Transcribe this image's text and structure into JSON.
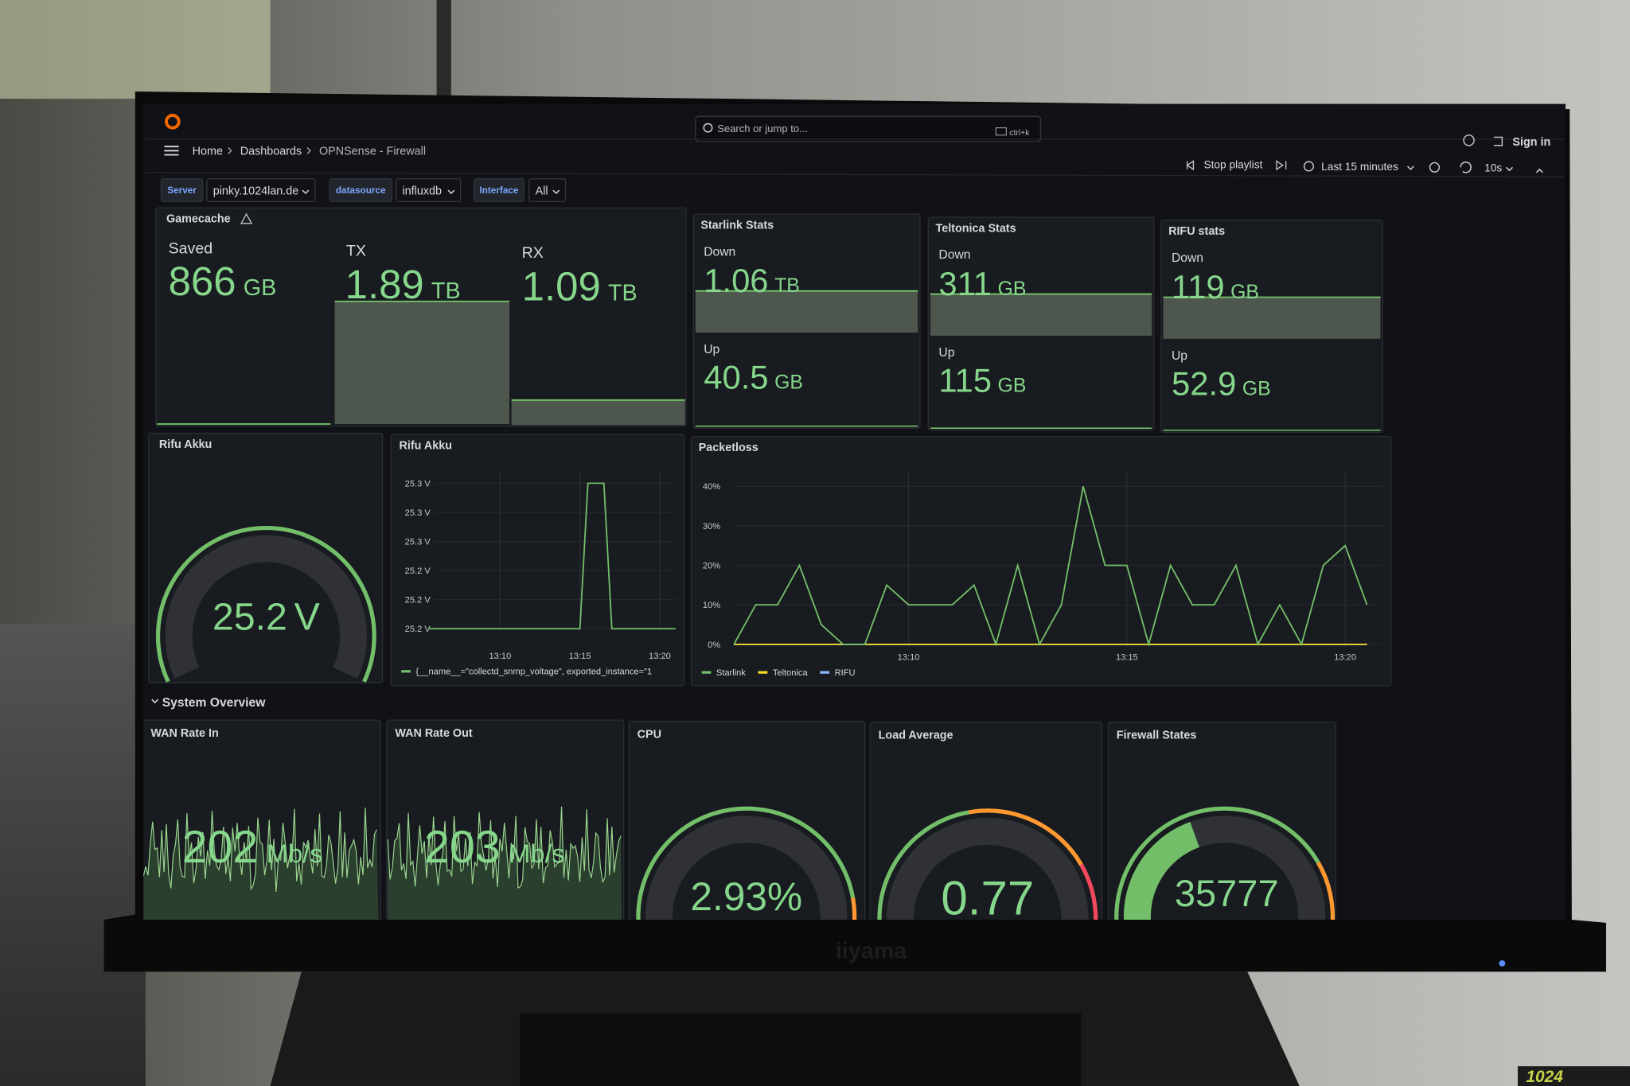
{
  "header": {
    "search_placeholder": "Search or jump to...",
    "search_shortcut": "ctrl+k",
    "breadcrumb": [
      "Home",
      "Dashboards",
      "OPNSense - Firewall"
    ],
    "sign_in": "Sign in",
    "stop_playlist": "Stop playlist",
    "time_range": "Last 15 minutes",
    "refresh_interval": "10s"
  },
  "variables": [
    {
      "label": "Server",
      "value": "pinky.1024lan.de"
    },
    {
      "label": "datasource",
      "value": "influxdb"
    },
    {
      "label": "Interface",
      "value": "All"
    }
  ],
  "gamecache": {
    "title": "Gamecache",
    "stats": [
      {
        "label": "Saved",
        "value": 866,
        "unit": "GB"
      },
      {
        "label": "TX",
        "value": 1.89,
        "unit": "TB"
      },
      {
        "label": "RX",
        "value": 1.09,
        "unit": "TB"
      }
    ]
  },
  "links": [
    {
      "title": "Starlink Stats",
      "down_label": "Down",
      "down": 1.06,
      "down_unit": "TB",
      "up_label": "Up",
      "up": 40.5,
      "up_unit": "GB"
    },
    {
      "title": "Teltonica Stats",
      "down_label": "Down",
      "down": 311,
      "down_unit": "GB",
      "up_label": "Up",
      "up": 115,
      "up_unit": "GB"
    },
    {
      "title": "RIFU stats",
      "down_label": "Down",
      "down": 119,
      "down_unit": "GB",
      "up_label": "Up",
      "up": 52.9,
      "up_unit": "GB"
    }
  ],
  "rifu_gauge": {
    "title": "Rifu Akku",
    "value": 25.2,
    "unit": "V"
  },
  "chart_data": [
    {
      "type": "line",
      "title": "Rifu Akku",
      "categories": [
        null,
        null,
        null,
        null,
        null,
        null,
        null,
        null,
        null,
        "13:10",
        null,
        null,
        null,
        null,
        null,
        null,
        null,
        null,
        null,
        "13:15",
        null,
        null,
        null,
        null,
        null,
        null,
        null,
        null,
        null,
        "13:20",
        null,
        null
      ],
      "series": [
        {
          "name": "{__name__=\"collectd_snmp_voltage\", exported_instance=\"1",
          "color": "#73bf69",
          "values": [
            25.2,
            25.2,
            25.2,
            25.2,
            25.2,
            25.2,
            25.2,
            25.2,
            25.2,
            25.2,
            25.2,
            25.2,
            25.2,
            25.2,
            25.2,
            25.2,
            25.2,
            25.2,
            25.2,
            25.2,
            25.3,
            25.3,
            25.3,
            25.2,
            25.2,
            25.2,
            25.2,
            25.2,
            25.2,
            25.2,
            25.2,
            25.2
          ]
        }
      ],
      "ylim": [
        25.2,
        25.3
      ],
      "yticks": [
        {
          "value": 25.2,
          "label": "25.2 V"
        },
        {
          "value": 25.22,
          "label": "25.2 V"
        },
        {
          "value": 25.24,
          "label": "25.2 V"
        },
        {
          "value": 25.26,
          "label": "25.3 V"
        },
        {
          "value": 25.28,
          "label": "25.3 V"
        },
        {
          "value": 25.3,
          "label": "25.3 V"
        }
      ],
      "grid": true,
      "legend": "bottom-left"
    },
    {
      "type": "line",
      "title": "Packetloss",
      "categories": [
        null,
        null,
        null,
        null,
        null,
        null,
        null,
        null,
        "13:10",
        null,
        null,
        null,
        null,
        null,
        null,
        null,
        null,
        null,
        "13:15",
        null,
        null,
        null,
        null,
        null,
        null,
        null,
        null,
        null,
        "13:20",
        null
      ],
      "series": [
        {
          "name": "Starlink",
          "color": "#73bf69",
          "values": [
            0,
            10,
            10,
            20,
            5,
            0,
            0,
            15,
            10,
            10,
            10,
            15,
            0,
            20,
            0,
            10,
            40,
            20,
            20,
            0,
            20,
            10,
            10,
            20,
            0,
            10,
            0,
            20,
            25,
            10
          ]
        },
        {
          "name": "Teltonica",
          "color": "#fade2a",
          "values": [
            0,
            0,
            0,
            0,
            0,
            0,
            0,
            0,
            0,
            0,
            0,
            0,
            0,
            0,
            0,
            0,
            0,
            0,
            0,
            0,
            0,
            0,
            0,
            0,
            0,
            0,
            0,
            0,
            0,
            0
          ]
        },
        {
          "name": "RIFU",
          "color": "#8ab8ff",
          "values": [
            0,
            0,
            0,
            0,
            0,
            0,
            0,
            0,
            0,
            0,
            0,
            0,
            0,
            0,
            0,
            0,
            0,
            0,
            0,
            0,
            0,
            0,
            0,
            0,
            0,
            0,
            0,
            0,
            0,
            0
          ]
        }
      ],
      "ylim": [
        0,
        40
      ],
      "yticks": [
        {
          "value": 0,
          "label": "0%"
        },
        {
          "value": 10,
          "label": "10%"
        },
        {
          "value": 20,
          "label": "20%"
        },
        {
          "value": 30,
          "label": "30%"
        },
        {
          "value": 40,
          "label": "40%"
        }
      ],
      "grid": true,
      "legend": "bottom-left"
    }
  ],
  "section": "System Overview",
  "system": [
    {
      "title": "WAN Rate In",
      "value": 202,
      "unit": "Mb/s"
    },
    {
      "title": "WAN Rate Out",
      "value": 203,
      "unit": "Mb/s"
    },
    {
      "title": "CPU",
      "value": 2.93,
      "unit": "%"
    },
    {
      "title": "Load Average",
      "value": 0.77
    },
    {
      "title": "Firewall States",
      "value": 35777
    }
  ],
  "monitor_brand": "iiyama",
  "watermark": "1024"
}
